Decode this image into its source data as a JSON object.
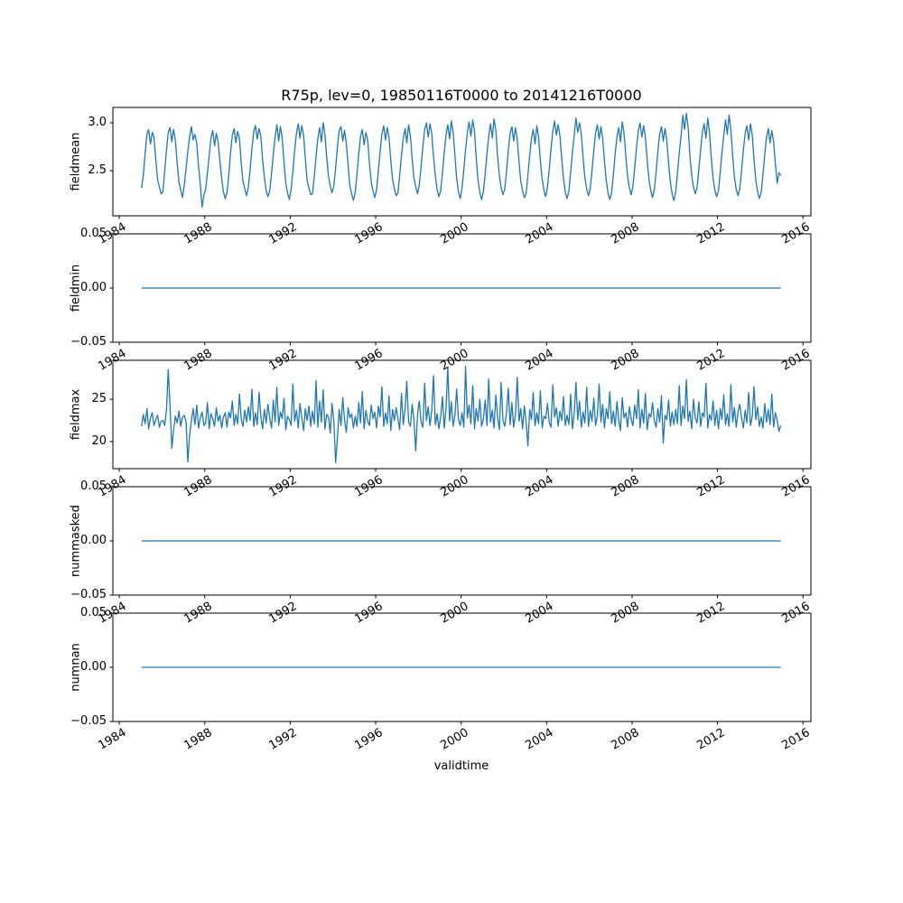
{
  "figure": {
    "line_color": "#1f77b4",
    "axes_color": "#000000",
    "background": "#ffffff"
  },
  "chart_data": {
    "type": "line",
    "title": "R75p, lev=0, 19850116T0000 to 20141216T0000",
    "xlabel": "validtime",
    "legend": "none",
    "grid": false,
    "x_ticks": [
      1984,
      1988,
      1992,
      1996,
      2000,
      2004,
      2008,
      2012,
      2016
    ],
    "x_tick_labels": [
      "1984",
      "1988",
      "1992",
      "1996",
      "2000",
      "2004",
      "2008",
      "2012",
      "2016"
    ],
    "xlim": [
      1983.7,
      2016.37
    ],
    "x_start": 1985.0417,
    "x_step": 0.0833333,
    "subplots": [
      {
        "name": "fieldmean",
        "ylabel": "fieldmean",
        "yticks": [
          2.5,
          3.0
        ],
        "ytick_labels": [
          "2.5",
          "3.0"
        ],
        "ylim": [
          2.03,
          3.16
        ],
        "values": [
          2.32,
          2.45,
          2.68,
          2.88,
          2.93,
          2.78,
          2.9,
          2.85,
          2.62,
          2.41,
          2.33,
          2.26,
          2.28,
          2.5,
          2.72,
          2.9,
          2.95,
          2.8,
          2.93,
          2.82,
          2.58,
          2.38,
          2.3,
          2.22,
          2.35,
          2.52,
          2.7,
          2.86,
          2.96,
          2.82,
          2.88,
          2.78,
          2.55,
          2.36,
          2.12,
          2.25,
          2.3,
          2.48,
          2.66,
          2.84,
          2.92,
          2.76,
          2.89,
          2.8,
          2.6,
          2.42,
          2.28,
          2.21,
          2.27,
          2.46,
          2.69,
          2.87,
          2.94,
          2.79,
          2.91,
          2.83,
          2.57,
          2.39,
          2.31,
          2.24,
          2.33,
          2.51,
          2.73,
          2.91,
          2.97,
          2.83,
          2.94,
          2.86,
          2.61,
          2.43,
          2.29,
          2.23,
          2.29,
          2.47,
          2.67,
          2.85,
          2.98,
          2.81,
          2.96,
          2.84,
          2.59,
          2.37,
          2.27,
          2.2,
          2.31,
          2.49,
          2.71,
          2.89,
          2.99,
          2.84,
          2.97,
          2.87,
          2.63,
          2.4,
          2.32,
          2.25,
          2.26,
          2.44,
          2.65,
          2.83,
          2.95,
          2.8,
          3.0,
          2.88,
          2.64,
          2.44,
          2.34,
          2.27,
          2.34,
          2.53,
          2.74,
          2.92,
          2.96,
          2.81,
          2.92,
          2.79,
          2.56,
          2.35,
          2.26,
          2.19,
          2.28,
          2.46,
          2.68,
          2.86,
          2.93,
          2.77,
          2.9,
          2.82,
          2.58,
          2.38,
          2.29,
          2.22,
          2.3,
          2.5,
          2.7,
          2.88,
          2.97,
          2.82,
          2.95,
          2.85,
          2.6,
          2.41,
          2.31,
          2.24,
          2.27,
          2.45,
          2.66,
          2.84,
          2.94,
          2.79,
          2.98,
          2.86,
          2.62,
          2.43,
          2.33,
          2.26,
          2.35,
          2.54,
          2.75,
          2.93,
          3.0,
          2.85,
          2.99,
          2.89,
          2.65,
          2.45,
          2.3,
          2.23,
          2.29,
          2.48,
          2.69,
          2.87,
          2.98,
          2.83,
          3.02,
          2.9,
          2.66,
          2.42,
          2.28,
          2.21,
          2.32,
          2.51,
          2.72,
          2.9,
          3.01,
          2.86,
          3.03,
          2.91,
          2.63,
          2.4,
          2.27,
          2.2,
          2.28,
          2.47,
          2.68,
          2.86,
          2.99,
          2.84,
          3.04,
          2.92,
          2.64,
          2.44,
          2.32,
          2.25,
          2.31,
          2.5,
          2.71,
          2.89,
          2.96,
          2.81,
          2.95,
          2.83,
          2.59,
          2.39,
          2.29,
          2.22,
          2.26,
          2.45,
          2.66,
          2.84,
          2.93,
          2.78,
          2.97,
          2.85,
          2.61,
          2.41,
          2.3,
          2.23,
          2.33,
          2.52,
          2.73,
          2.91,
          3.02,
          2.87,
          2.98,
          2.86,
          2.62,
          2.42,
          2.28,
          2.21,
          2.29,
          2.48,
          2.69,
          2.87,
          3.05,
          2.9,
          3.0,
          2.88,
          2.64,
          2.43,
          2.31,
          2.24,
          2.31,
          2.5,
          2.71,
          2.89,
          2.98,
          2.83,
          2.96,
          2.84,
          2.6,
          2.4,
          2.27,
          2.2,
          2.27,
          2.46,
          2.67,
          2.85,
          2.95,
          2.8,
          3.01,
          2.89,
          2.65,
          2.44,
          2.32,
          2.25,
          2.34,
          2.53,
          2.74,
          2.92,
          3.0,
          2.85,
          2.97,
          2.85,
          2.61,
          2.41,
          2.29,
          2.22,
          2.3,
          2.49,
          2.7,
          2.88,
          2.96,
          2.81,
          2.94,
          2.82,
          2.58,
          2.38,
          2.26,
          2.19,
          2.28,
          2.47,
          2.68,
          2.86,
          3.08,
          2.93,
          3.1,
          2.95,
          2.66,
          2.45,
          2.33,
          2.26,
          2.32,
          2.51,
          2.72,
          2.9,
          2.99,
          2.84,
          3.05,
          2.9,
          2.63,
          2.42,
          2.3,
          2.23,
          2.29,
          2.48,
          2.69,
          2.87,
          3.03,
          2.88,
          3.08,
          2.93,
          2.65,
          2.43,
          2.31,
          2.24,
          2.31,
          2.5,
          2.71,
          2.89,
          2.97,
          2.82,
          2.99,
          2.87,
          2.62,
          2.4,
          2.28,
          2.21,
          2.27,
          2.46,
          2.67,
          2.85,
          2.94,
          2.79,
          2.92,
          2.8,
          2.57,
          2.37,
          2.48,
          2.45
        ]
      },
      {
        "name": "fieldmin",
        "ylabel": "fieldmin",
        "yticks": [
          -0.05,
          0.0,
          0.05
        ],
        "ytick_labels": [
          "−0.05",
          "0.00",
          "0.05"
        ],
        "ylim": [
          -0.05,
          0.05
        ],
        "constant": 0.0
      },
      {
        "name": "fieldmax",
        "ylabel": "fieldmax",
        "yticks": [
          20,
          25
        ],
        "ytick_labels": [
          "20",
          "25"
        ],
        "ylim": [
          16.8,
          29.6
        ],
        "values": [
          21.8,
          23.2,
          22.1,
          23.9,
          21.5,
          22.8,
          23.4,
          21.9,
          22.6,
          23.1,
          21.7,
          22.4,
          22.5,
          21.9,
          23.8,
          28.5,
          24.2,
          19.2,
          21.4,
          23.0,
          22.2,
          23.6,
          21.8,
          22.9,
          23.1,
          22.4,
          17.6,
          20.8,
          22.5,
          23.9,
          22.0,
          24.3,
          21.6,
          22.8,
          23.5,
          21.9,
          22.2,
          24.6,
          21.5,
          23.3,
          22.7,
          21.8,
          24.0,
          22.4,
          23.1,
          21.6,
          22.9,
          23.4,
          21.7,
          23.5,
          22.8,
          24.8,
          21.9,
          23.2,
          22.1,
          25.6,
          22.6,
          21.8,
          23.7,
          22.3,
          24.1,
          22.5,
          26.2,
          21.8,
          23.4,
          22.0,
          25.8,
          22.9,
          21.5,
          23.8,
          22.2,
          24.4,
          22.8,
          21.6,
          24.9,
          22.3,
          26.4,
          21.9,
          23.5,
          22.7,
          25.1,
          21.4,
          23.0,
          22.6,
          21.9,
          26.8,
          22.4,
          23.7,
          21.6,
          24.5,
          22.8,
          21.3,
          23.9,
          22.5,
          24.2,
          21.8,
          23.6,
          22.1,
          27.2,
          21.7,
          24.8,
          22.3,
          26.1,
          21.5,
          23.2,
          22.9,
          21.0,
          24.5,
          22.4,
          17.5,
          20.3,
          23.8,
          21.9,
          25.2,
          22.6,
          21.1,
          24.0,
          22.8,
          23.3,
          21.6,
          23.0,
          21.8,
          24.6,
          22.2,
          25.9,
          21.5,
          23.7,
          22.4,
          21.9,
          24.3,
          22.7,
          23.5,
          21.6,
          24.2,
          22.9,
          26.5,
          21.8,
          23.4,
          22.1,
          25.4,
          21.3,
          23.8,
          22.5,
          24.0,
          22.7,
          21.4,
          25.7,
          22.0,
          23.9,
          27.1,
          22.3,
          21.8,
          24.4,
          22.6,
          18.9,
          23.2,
          24.8,
          22.3,
          21.7,
          26.9,
          22.5,
          24.1,
          21.9,
          23.6,
          27.8,
          22.0,
          23.3,
          21.5,
          22.9,
          25.3,
          21.6,
          23.8,
          28.8,
          22.4,
          24.7,
          21.8,
          23.1,
          26.2,
          22.6,
          21.9,
          23.4,
          21.7,
          28.9,
          22.8,
          24.3,
          22.1,
          26.6,
          21.5,
          23.9,
          22.4,
          25.0,
          21.8,
          22.6,
          24.9,
          21.9,
          27.4,
          22.3,
          23.7,
          21.6,
          25.5,
          22.8,
          21.4,
          27.0,
          22.5,
          21.8,
          23.5,
          26.3,
          22.0,
          24.6,
          21.7,
          23.2,
          27.6,
          22.4,
          23.9,
          21.5,
          24.2,
          22.3,
          19.5,
          23.8,
          22.6,
          25.8,
          21.9,
          23.4,
          22.1,
          26.0,
          21.6,
          23.0,
          22.7,
          24.5,
          22.2,
          21.7,
          26.7,
          22.9,
          24.0,
          21.8,
          23.6,
          22.5,
          25.3,
          21.9,
          23.1,
          22.0,
          25.6,
          21.5,
          23.3,
          27.0,
          22.6,
          24.8,
          21.7,
          23.5,
          22.2,
          26.4,
          21.8,
          23.7,
          22.4,
          25.1,
          21.9,
          23.0,
          26.8,
          22.3,
          24.4,
          21.6,
          23.9,
          22.7,
          25.9,
          22.1,
          23.6,
          21.8,
          24.7,
          22.5,
          21.3,
          25.2,
          22.8,
          23.4,
          21.7,
          24.1,
          22.6,
          21.9,
          24.3,
          22.7,
          26.1,
          21.6,
          23.8,
          22.2,
          25.7,
          21.4,
          23.3,
          22.9,
          24.6,
          22.5,
          21.7,
          23.9,
          22.3,
          25.4,
          19.8,
          23.1,
          22.6,
          24.9,
          21.8,
          23.5,
          22.0,
          23.8,
          22.1,
          26.6,
          21.9,
          24.2,
          22.7,
          27.3,
          22.4,
          23.6,
          21.5,
          25.0,
          22.8,
          22.2,
          24.7,
          21.8,
          23.4,
          22.9,
          26.9,
          21.6,
          23.2,
          22.5,
          24.8,
          21.9,
          23.7,
          21.5,
          23.9,
          22.6,
          25.5,
          22.0,
          23.3,
          21.8,
          26.7,
          22.3,
          24.0,
          21.7,
          23.5,
          24.4,
          22.8,
          21.6,
          23.7,
          22.2,
          25.8,
          21.9,
          23.0,
          26.5,
          22.6,
          24.1,
          21.8,
          22.9,
          21.6,
          24.5,
          22.3,
          23.8,
          22.0,
          25.6,
          21.7,
          23.4,
          22.5,
          21.2,
          21.9
        ]
      },
      {
        "name": "nummasked",
        "ylabel": "nummasked",
        "yticks": [
          -0.05,
          0.0,
          0.05
        ],
        "ytick_labels": [
          "−0.05",
          "0.00",
          "0.05"
        ],
        "ylim": [
          -0.05,
          0.05
        ],
        "constant": 0.0
      },
      {
        "name": "numnan",
        "ylabel": "numnan",
        "yticks": [
          -0.05,
          0.0,
          0.05
        ],
        "ytick_labels": [
          "−0.05",
          "0.00",
          "0.05"
        ],
        "ylim": [
          -0.05,
          0.05
        ],
        "constant": 0.0
      }
    ]
  }
}
